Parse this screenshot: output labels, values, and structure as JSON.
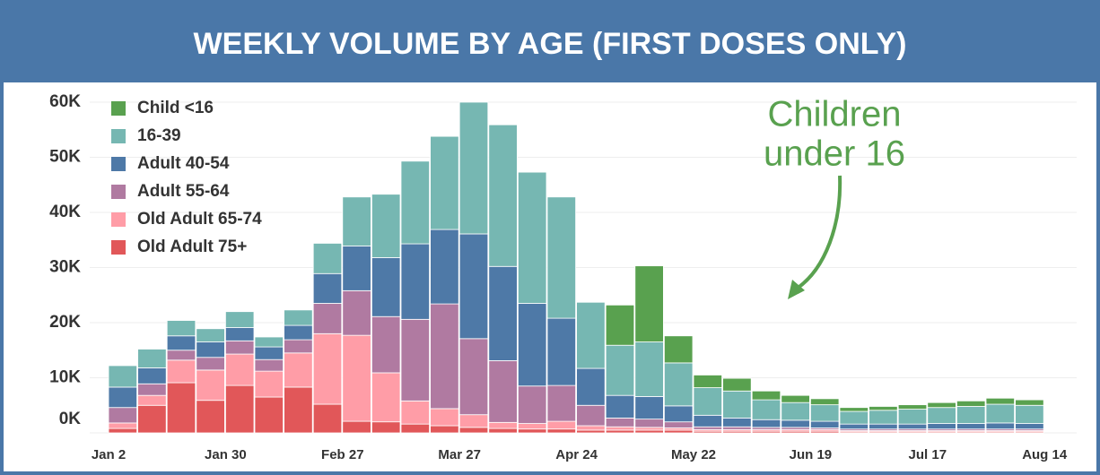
{
  "chart_data": {
    "type": "stacked_bar",
    "title": "WEEKLY VOLUME BY AGE (FIRST DOSES ONLY)",
    "annotation": [
      "Children",
      "under 16"
    ],
    "categories": [
      "Jan 2",
      null,
      null,
      null,
      "Jan 30",
      null,
      null,
      null,
      "Feb 27",
      null,
      null,
      null,
      "Mar 27",
      null,
      null,
      null,
      "Apr 24",
      null,
      null,
      null,
      "May 22",
      null,
      null,
      null,
      "Jun 19",
      null,
      null,
      null,
      "Jul 17",
      null,
      null,
      null,
      "Aug 14"
    ],
    "series": [
      {
        "name": "Child <16",
        "color": "#59a14f",
        "values": [
          0,
          0,
          0,
          0,
          0,
          0,
          0,
          0,
          0,
          0,
          0,
          0,
          0,
          0,
          0,
          0,
          0,
          7300,
          13800,
          4900,
          2300,
          2300,
          1600,
          1300,
          1100,
          700,
          700,
          800,
          900,
          1000,
          1100,
          1000,
          null
        ]
      },
      {
        "name": "16-39",
        "color": "#76b7b2",
        "values": [
          3900,
          3400,
          2800,
          2400,
          2900,
          1800,
          2800,
          5500,
          8900,
          11500,
          15000,
          16900,
          23900,
          25700,
          23800,
          22000,
          12000,
          9100,
          9900,
          7800,
          5000,
          4900,
          3600,
          3200,
          3000,
          2300,
          2500,
          2700,
          2900,
          3100,
          3400,
          3300,
          null
        ]
      },
      {
        "name": "Adult 40-54",
        "color": "#4e79a7",
        "values": [
          3700,
          2900,
          2600,
          2800,
          2400,
          2300,
          2600,
          5400,
          8100,
          10700,
          13700,
          13500,
          19000,
          17100,
          15000,
          12200,
          6700,
          4100,
          4100,
          2900,
          2100,
          1600,
          1400,
          1300,
          1200,
          900,
          900,
          900,
          1000,
          1000,
          1100,
          1000,
          null
        ]
      },
      {
        "name": "Adult 55-64",
        "color": "#b07aa1",
        "values": [
          2800,
          2100,
          1800,
          2300,
          2400,
          2100,
          2400,
          5500,
          8100,
          10200,
          14800,
          19000,
          13800,
          11200,
          6800,
          6500,
          3700,
          1600,
          1500,
          1100,
          500,
          500,
          400,
          400,
          300,
          300,
          300,
          300,
          300,
          300,
          300,
          300,
          null
        ]
      },
      {
        "name": "Old Adult 65-74",
        "color": "#ff9da7",
        "values": [
          1000,
          1800,
          4100,
          5500,
          5700,
          4700,
          6200,
          12800,
          15600,
          8900,
          4200,
          3100,
          2300,
          1100,
          1000,
          1400,
          800,
          600,
          500,
          400,
          300,
          300,
          300,
          300,
          300,
          200,
          200,
          200,
          200,
          200,
          200,
          200,
          null
        ]
      },
      {
        "name": "Old Adult 75+",
        "color": "#e15759",
        "values": [
          800,
          5000,
          9100,
          5900,
          8600,
          6500,
          8300,
          5200,
          2100,
          2000,
          1600,
          1300,
          1000,
          800,
          700,
          700,
          500,
          500,
          500,
          500,
          300,
          300,
          300,
          300,
          300,
          200,
          200,
          200,
          200,
          200,
          200,
          200,
          null
        ]
      }
    ],
    "ylim": [
      0,
      62000
    ],
    "yticks": [
      {
        "value": 0,
        "label": "0K"
      },
      {
        "value": 10000,
        "label": "10K"
      },
      {
        "value": 20000,
        "label": "20K"
      },
      {
        "value": 30000,
        "label": "30K"
      },
      {
        "value": 40000,
        "label": "40K"
      },
      {
        "value": 50000,
        "label": "50K"
      },
      {
        "value": 60000,
        "label": "60K"
      }
    ],
    "grid": true,
    "legend": "top-left"
  }
}
